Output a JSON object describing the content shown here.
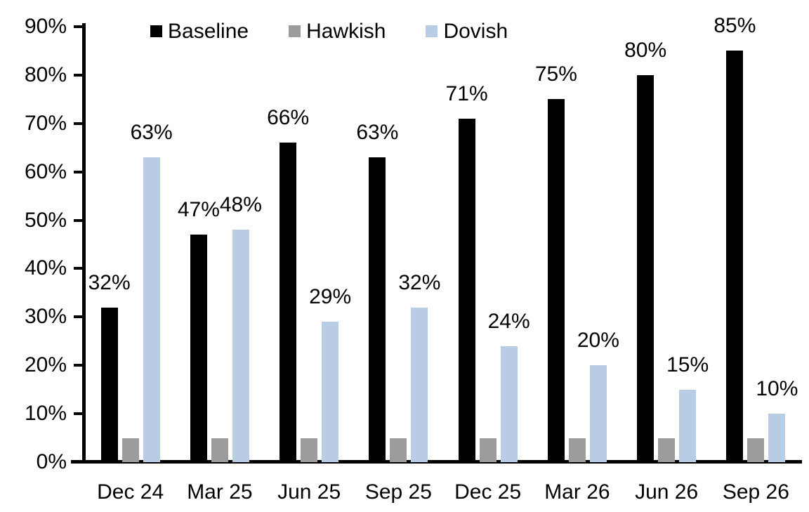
{
  "chart_data": {
    "type": "bar",
    "categories": [
      "Dec 24",
      "Mar 25",
      "Jun 25",
      "Sep 25",
      "Dec 25",
      "Mar 26",
      "Jun 26",
      "Sep 26"
    ],
    "series": [
      {
        "name": "Baseline",
        "color": "#000000",
        "values": [
          32,
          47,
          66,
          63,
          71,
          75,
          80,
          85
        ],
        "labels": [
          "32%",
          "47%",
          "66%",
          "63%",
          "71%",
          "75%",
          "80%",
          "85%"
        ]
      },
      {
        "name": "Hawkish",
        "color": "#9c9c9c",
        "values": [
          5,
          5,
          5,
          5,
          5,
          5,
          5,
          5
        ],
        "labels": [
          "",
          "",
          "",
          "",
          "",
          "",
          "",
          ""
        ]
      },
      {
        "name": "Dovish",
        "color": "#b8cce4",
        "values": [
          63,
          48,
          29,
          32,
          24,
          20,
          15,
          10
        ],
        "labels": [
          "63%",
          "48%",
          "29%",
          "32%",
          "24%",
          "20%",
          "15%",
          "10%"
        ]
      }
    ],
    "title": "",
    "xlabel": "",
    "ylabel": "",
    "y_axis": {
      "min": 0,
      "max": 90,
      "tick_step": 10,
      "tick_labels": [
        "0%",
        "10%",
        "20%",
        "30%",
        "40%",
        "50%",
        "60%",
        "70%",
        "80%",
        "90%"
      ]
    },
    "legend_position": "top",
    "grid": false,
    "axis_color": "#000000",
    "background_color": "#ffffff"
  }
}
